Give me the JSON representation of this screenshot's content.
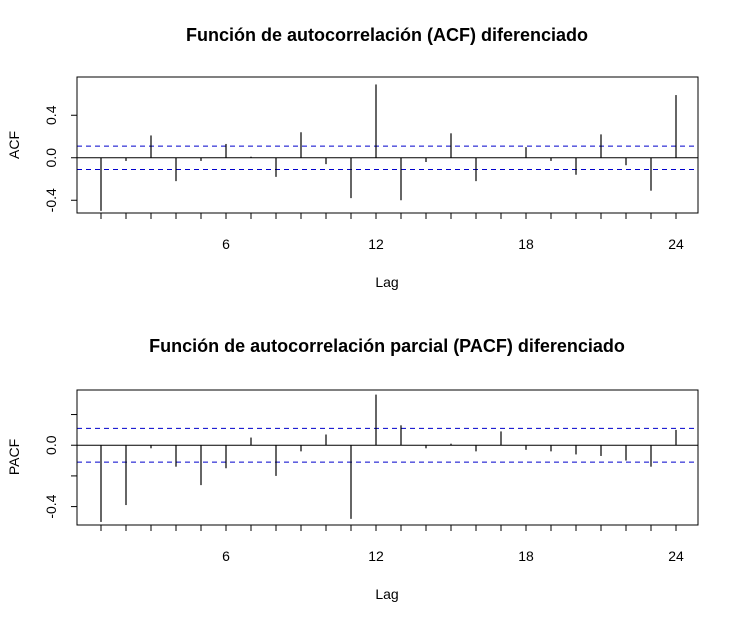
{
  "chart_data": [
    {
      "type": "bar",
      "title": "Función de autocorrelación (ACF) diferenciado",
      "xlabel": "Lag",
      "ylabel": "ACF",
      "x_ticks": [
        6,
        12,
        18,
        24
      ],
      "y_ticks": [
        -0.4,
        0.0,
        0.4
      ],
      "y_tick_labels": [
        "-0.4",
        "0.0",
        "0.4"
      ],
      "xlim": [
        0,
        25
      ],
      "ylim": [
        -0.52,
        0.76
      ],
      "confidence_band": [
        -0.11,
        0.11
      ],
      "lags": [
        1,
        2,
        3,
        4,
        5,
        6,
        7,
        8,
        9,
        10,
        11,
        12,
        13,
        14,
        15,
        16,
        17,
        18,
        19,
        20,
        21,
        22,
        23,
        24
      ],
      "values": [
        -0.5,
        -0.03,
        0.21,
        -0.22,
        -0.03,
        0.13,
        0.01,
        -0.18,
        0.24,
        -0.06,
        -0.38,
        0.69,
        -0.4,
        -0.04,
        0.23,
        -0.22,
        0.0,
        0.1,
        -0.03,
        -0.16,
        0.22,
        -0.07,
        -0.31,
        0.59
      ]
    },
    {
      "type": "bar",
      "title": "Función de autocorrelación parcial (PACF) diferenciado",
      "xlabel": "Lag",
      "ylabel": "PACF",
      "x_ticks": [
        6,
        12,
        18,
        24
      ],
      "y_ticks": [
        -0.4,
        0.0
      ],
      "y_tick_labels": [
        "-0.4",
        "0.0"
      ],
      "extra_y_ticks": [
        -0.2,
        0.2
      ],
      "xlim": [
        0,
        25
      ],
      "ylim": [
        -0.52,
        0.36
      ],
      "confidence_band": [
        -0.11,
        0.11
      ],
      "lags": [
        1,
        2,
        3,
        4,
        5,
        6,
        7,
        8,
        9,
        10,
        11,
        12,
        13,
        14,
        15,
        16,
        17,
        18,
        19,
        20,
        21,
        22,
        23,
        24
      ],
      "values": [
        -0.5,
        -0.39,
        -0.02,
        -0.14,
        -0.26,
        -0.15,
        0.05,
        -0.2,
        -0.04,
        0.07,
        -0.48,
        0.33,
        0.13,
        -0.02,
        0.01,
        -0.04,
        0.09,
        -0.03,
        -0.04,
        -0.06,
        -0.07,
        -0.1,
        -0.14,
        0.1
      ]
    }
  ]
}
